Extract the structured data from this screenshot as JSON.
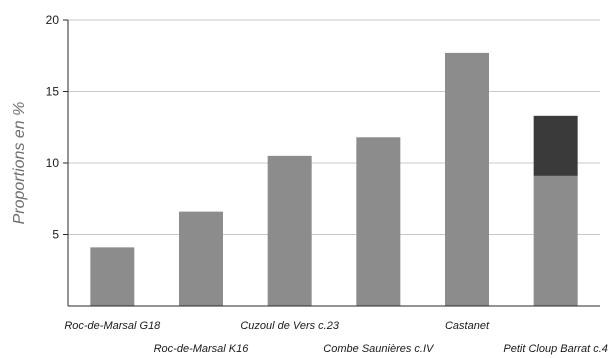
{
  "chart_data": {
    "type": "bar",
    "categories": [
      "Roc-de-Marsal G18",
      "Roc-de-Marsal K16",
      "Cuzoul de Vers c.23",
      "Combe Saunières c.IV",
      "Castanet",
      "Petit Cloup Barrat c.4"
    ],
    "series": [
      {
        "values": [
          4.1,
          6.6,
          10.5,
          11.8,
          17.7,
          9.1
        ],
        "color": "#8c8c8c"
      },
      {
        "values": [
          0,
          0,
          0,
          0,
          0,
          4.2
        ],
        "color": "#3a3a3a"
      }
    ],
    "stacked": true,
    "ylabel": "Proportions en %",
    "xlabel": "",
    "ylim": [
      0,
      20
    ],
    "yticks": [
      5,
      10,
      15,
      20
    ],
    "grid": true,
    "colors": {
      "grid": "#c8c8c8",
      "axis": "#2a2a2a"
    }
  }
}
